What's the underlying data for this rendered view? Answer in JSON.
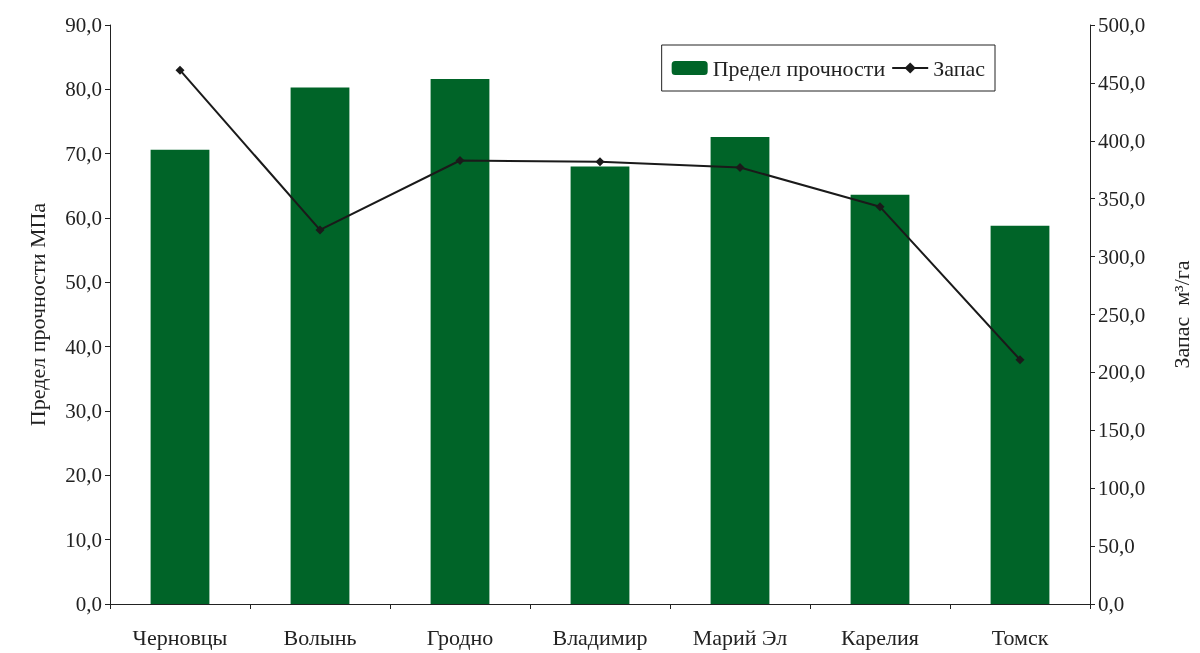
{
  "chart_data": {
    "type": "bar",
    "categories": [
      "Черновцы",
      "Волынь",
      "Гродно",
      "Владимир",
      "Марий Эл",
      "Карелия",
      "Томск"
    ],
    "ylabel": "Предел прочности МПа",
    "y2label": "Запас  м³/га",
    "series": [
      {
        "name": "Предел прочности",
        "color": "#006428",
        "values": [
          70.6,
          80.3,
          81.6,
          68.0,
          72.6,
          63.6,
          58.8
        ]
      },
      {
        "name": "Запас",
        "type": "line",
        "axis": "y2",
        "color": "#1a1a1a",
        "marker": "diamond",
        "values": [
          461,
          323,
          383,
          382,
          377,
          343,
          211
        ]
      }
    ],
    "ylim": [
      0,
      90
    ],
    "yticks": [
      {
        "value": 0,
        "label": "0,0"
      },
      {
        "value": 10,
        "label": "10,0"
      },
      {
        "value": 20,
        "label": "20,0"
      },
      {
        "value": 30,
        "label": "30,0"
      },
      {
        "value": 40,
        "label": "40,0"
      },
      {
        "value": 50,
        "label": "50,0"
      },
      {
        "value": 60,
        "label": "60,0"
      },
      {
        "value": 70,
        "label": "70,0"
      },
      {
        "value": 80,
        "label": "80,0"
      },
      {
        "value": 90,
        "label": "90,0"
      }
    ],
    "y2lim": [
      0,
      500
    ],
    "y2ticks": [
      {
        "value": 0,
        "label": "0,0"
      },
      {
        "value": 50,
        "label": "50,0"
      },
      {
        "value": 100,
        "label": "100,0"
      },
      {
        "value": 150,
        "label": "150,0"
      },
      {
        "value": 200,
        "label": "200,0"
      },
      {
        "value": 250,
        "label": "250,0"
      },
      {
        "value": 300,
        "label": "300,0"
      },
      {
        "value": 350,
        "label": "350,0"
      },
      {
        "value": 400,
        "label": "400,0"
      },
      {
        "value": 450,
        "label": "450,0"
      },
      {
        "value": 500,
        "label": "500,0"
      }
    ],
    "grid": false,
    "legend": "top right"
  }
}
